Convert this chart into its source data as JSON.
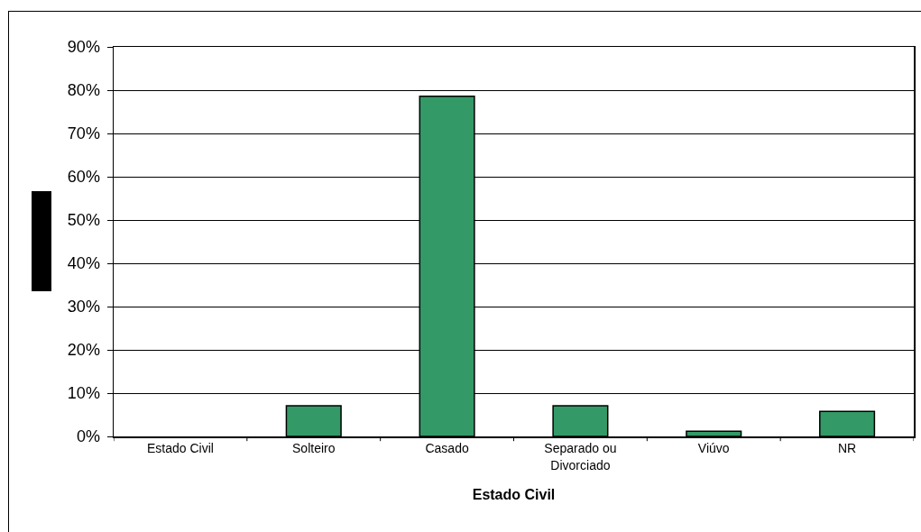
{
  "chart_data": {
    "type": "bar",
    "xlabel": "Estado Civil",
    "categories": [
      "Estado Civil",
      "Solteiro",
      "Casado",
      "Separado ou Divorciado",
      "Viúvo",
      "NR"
    ],
    "values": [
      null,
      7.1,
      78.6,
      7.1,
      1.2,
      5.8
    ],
    "color": "#339966",
    "ylim": [
      0,
      90
    ],
    "yticks": [
      {
        "value": 0,
        "label": "0%"
      },
      {
        "value": 10,
        "label": "10%"
      },
      {
        "value": 20,
        "label": "20%"
      },
      {
        "value": 30,
        "label": "30%"
      },
      {
        "value": 40,
        "label": "40%"
      },
      {
        "value": 50,
        "label": "50%"
      },
      {
        "value": 60,
        "label": "60%"
      },
      {
        "value": 70,
        "label": "70%"
      },
      {
        "value": 80,
        "label": "80%"
      },
      {
        "value": 90,
        "label": "90%"
      }
    ],
    "grid": "y"
  }
}
